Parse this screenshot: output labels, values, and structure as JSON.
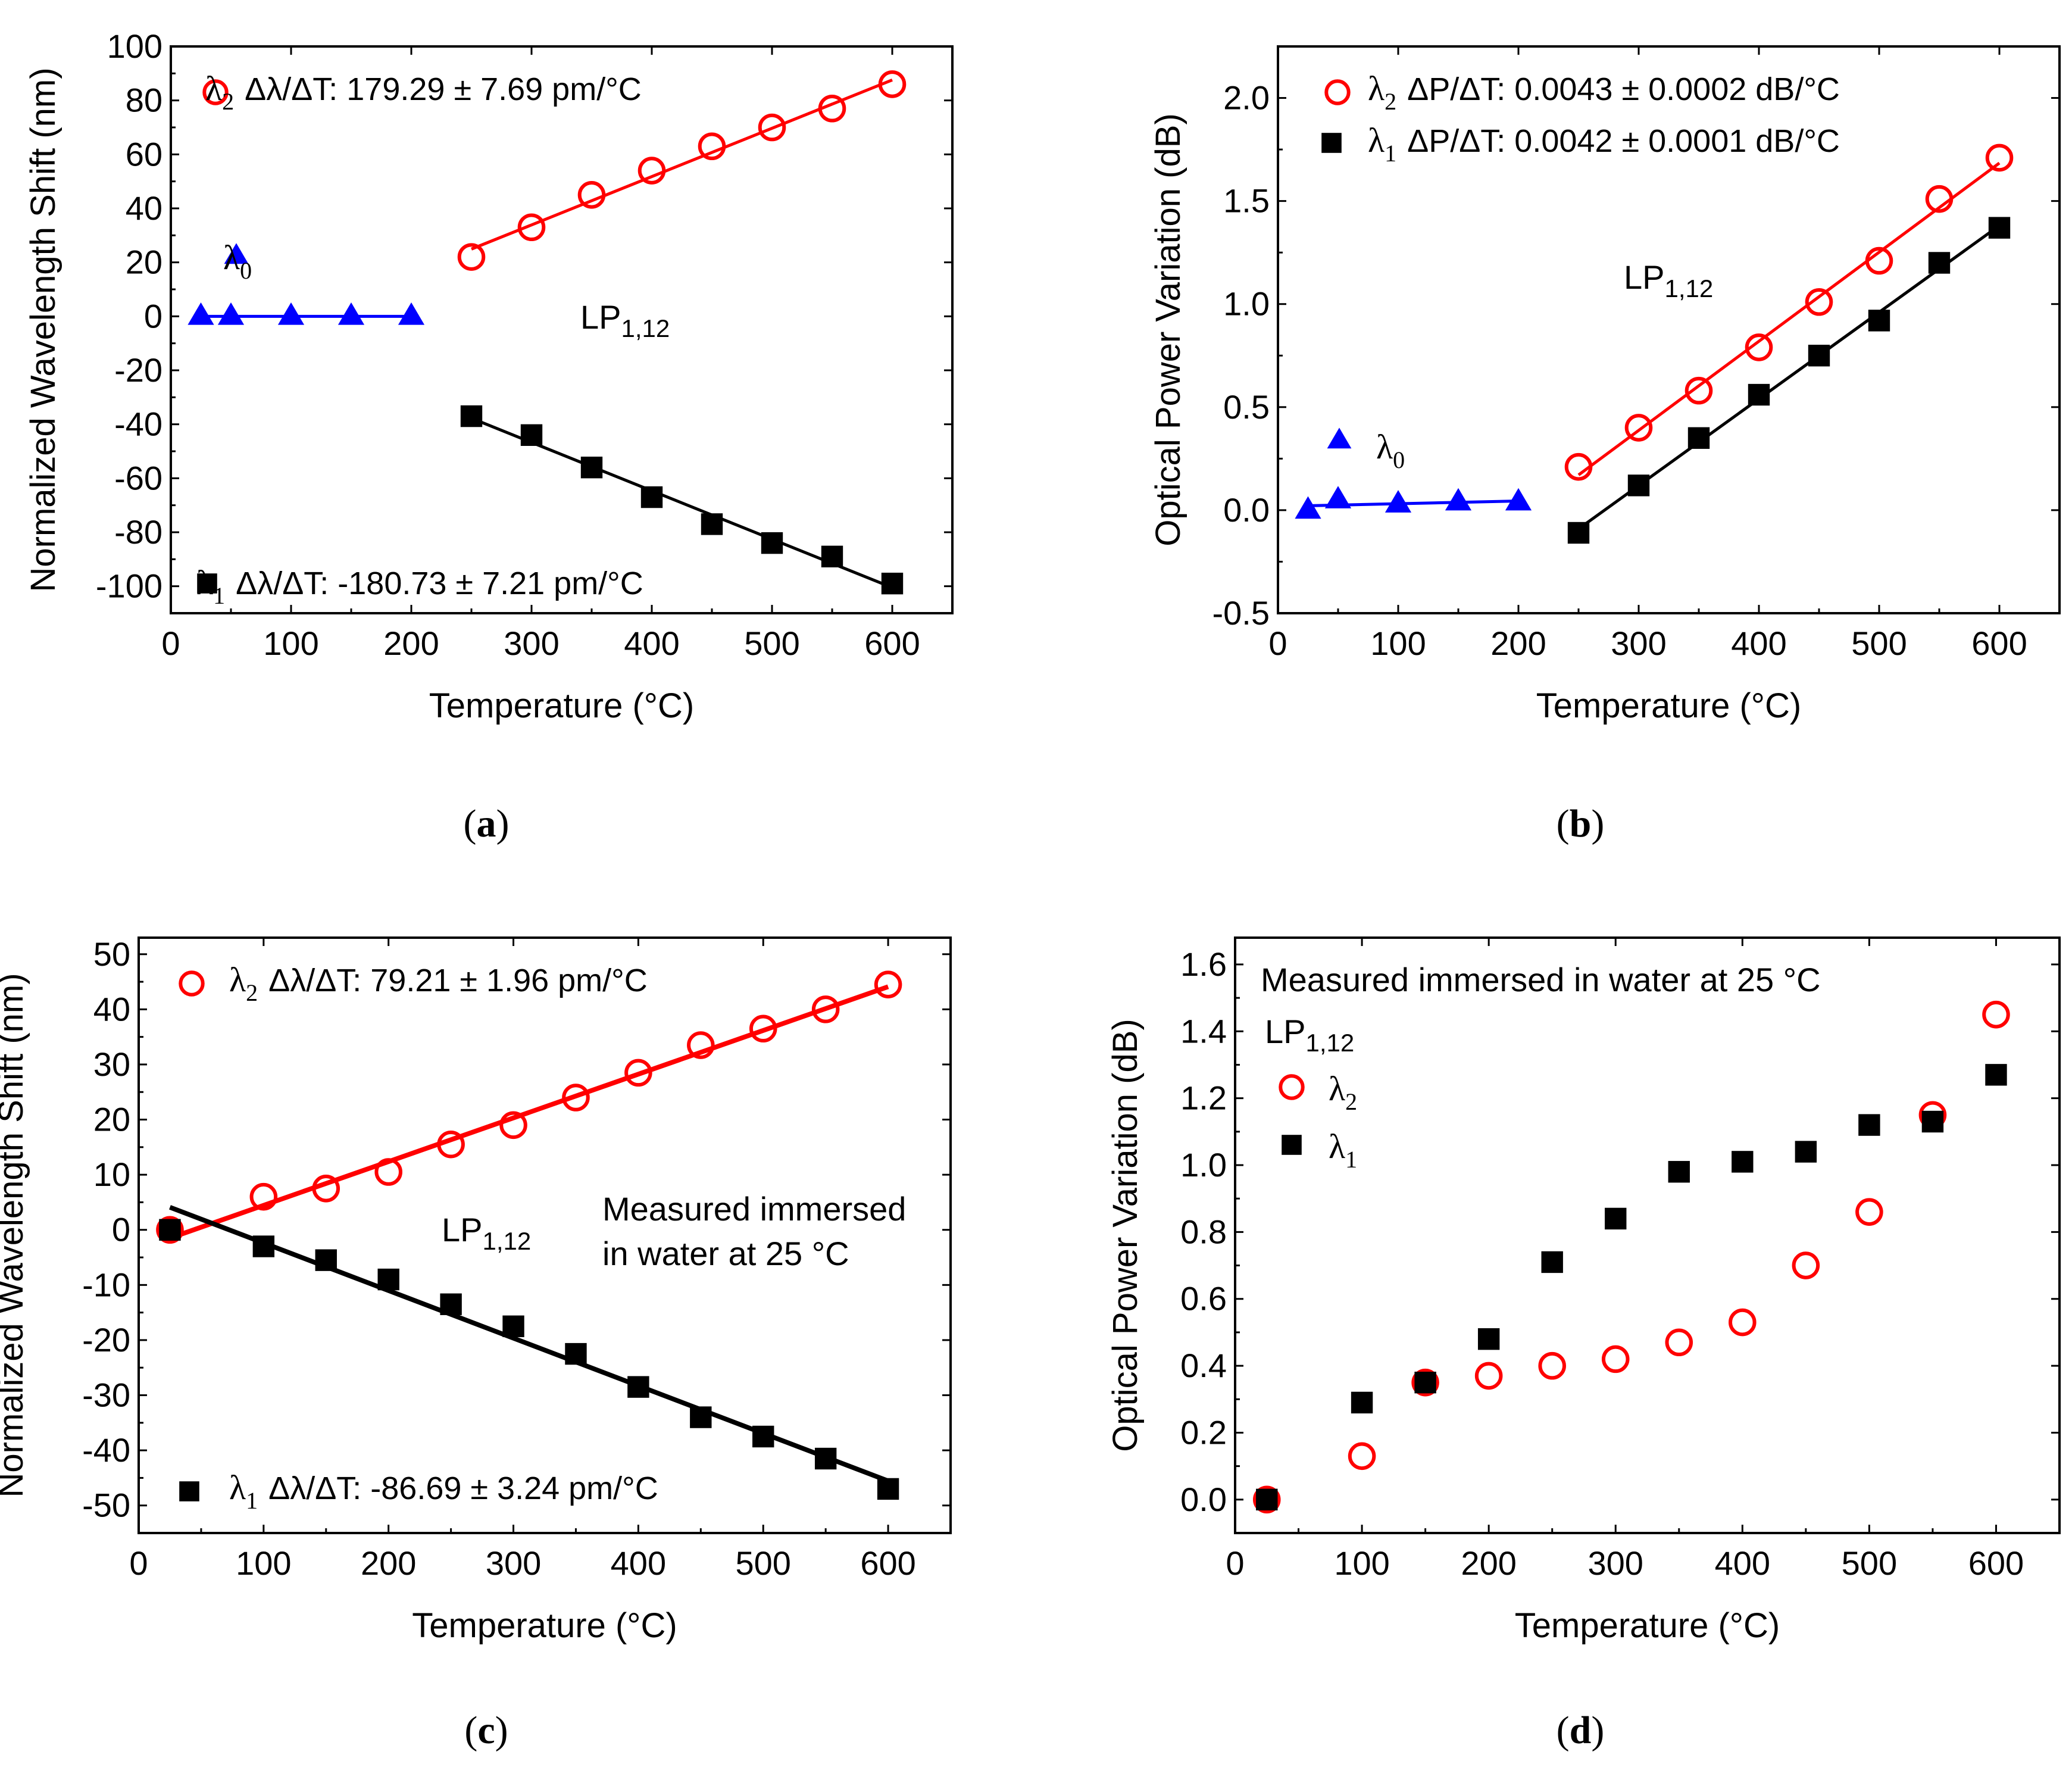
{
  "colors": {
    "lambda2": "#ff0000",
    "lambda1": "#000000",
    "lambda0": "#0000ff"
  },
  "chart_data": [
    {
      "panel": "(a)",
      "panel_letter": "a",
      "type": "scatter",
      "xlabel": "Temperature (°C)",
      "ylabel": "Normalized Wavelength Shift (nm)",
      "xlim": [
        0,
        650
      ],
      "ylim": [
        -110,
        100
      ],
      "xticks": [
        0,
        100,
        200,
        300,
        400,
        500,
        600
      ],
      "yticks": [
        -100,
        -80,
        -60,
        -40,
        -20,
        0,
        20,
        40,
        60,
        80,
        100
      ],
      "mode_label": {
        "main": "LP",
        "sub": "1,12"
      },
      "series": [
        {
          "name": "λ2",
          "marker": "open-circle",
          "color": "#ff0000",
          "fit": true,
          "annotation": {
            "symbol": "λ",
            "sub": "2",
            "text": "Δλ/ΔT: 179.29 ± 7.69 pm/°C"
          },
          "x": [
            250,
            300,
            350,
            400,
            450,
            500,
            550,
            600
          ],
          "y": [
            22,
            33,
            45,
            54,
            63,
            70,
            77,
            86
          ]
        },
        {
          "name": "λ1",
          "marker": "filled-square",
          "color": "#000000",
          "fit": true,
          "annotation": {
            "symbol": "λ",
            "sub": "1",
            "text": "Δλ/ΔT: -180.73 ± 7.21 pm/°C"
          },
          "x": [
            250,
            300,
            350,
            400,
            450,
            500,
            550,
            600
          ],
          "y": [
            -37,
            -44,
            -56,
            -67,
            -77,
            -84,
            -89,
            -99
          ]
        },
        {
          "name": "λ0",
          "marker": "filled-triangle",
          "color": "#0000ff",
          "fit": true,
          "annotation": {
            "symbol": "λ",
            "sub": "0",
            "text": ""
          },
          "x": [
            25,
            50,
            100,
            150,
            200
          ],
          "y": [
            0,
            0,
            0,
            0,
            0
          ]
        }
      ]
    },
    {
      "panel": "(b)",
      "panel_letter": "b",
      "type": "scatter",
      "xlabel": "Temperature (°C)",
      "ylabel": "Optical Power Variation (dB)",
      "xlim": [
        0,
        650
      ],
      "ylim": [
        -0.5,
        2.25
      ],
      "xticks": [
        0,
        100,
        200,
        300,
        400,
        500,
        600
      ],
      "yticks": [
        -0.5,
        0.0,
        0.5,
        1.0,
        1.5,
        2.0
      ],
      "ytick_labels": [
        "-0.5",
        "0.0",
        "0.5",
        "1.0",
        "1.5",
        "2.0"
      ],
      "mode_label": {
        "main": "LP",
        "sub": "1,12"
      },
      "series": [
        {
          "name": "λ2",
          "marker": "open-circle",
          "color": "#ff0000",
          "fit": true,
          "annotation": {
            "symbol": "λ",
            "sub": "2",
            "text": "ΔP/ΔT: 0.0043 ± 0.0002 dB/°C"
          },
          "x": [
            250,
            300,
            350,
            400,
            450,
            500,
            550,
            600
          ],
          "y": [
            0.21,
            0.4,
            0.58,
            0.79,
            1.01,
            1.21,
            1.51,
            1.71
          ]
        },
        {
          "name": "λ1",
          "marker": "filled-square",
          "color": "#000000",
          "fit": true,
          "annotation": {
            "symbol": "λ",
            "sub": "1",
            "text": "ΔP/ΔT: 0.0042 ± 0.0001 dB/°C"
          },
          "x": [
            250,
            300,
            350,
            400,
            450,
            500,
            550,
            600
          ],
          "y": [
            -0.11,
            0.12,
            0.35,
            0.56,
            0.75,
            0.92,
            1.2,
            1.37
          ]
        },
        {
          "name": "λ0",
          "marker": "filled-triangle",
          "color": "#0000ff",
          "fit": true,
          "annotation": {
            "symbol": "λ",
            "sub": "0",
            "text": ""
          },
          "x": [
            25,
            50,
            100,
            150,
            200
          ],
          "y": [
            0.0,
            0.05,
            0.03,
            0.04,
            0.04
          ]
        }
      ]
    },
    {
      "panel": "(c)",
      "panel_letter": "c",
      "type": "scatter",
      "xlabel": "Temperature (°C)",
      "ylabel": "Normalized Wavelength Shift (nm)",
      "xlim": [
        0,
        650
      ],
      "ylim": [
        -55,
        53
      ],
      "xticks": [
        0,
        100,
        200,
        300,
        400,
        500,
        600
      ],
      "yticks": [
        -50,
        -40,
        -30,
        -20,
        -10,
        0,
        10,
        20,
        30,
        40,
        50
      ],
      "mode_label": {
        "main": "LP",
        "sub": "1,12"
      },
      "note_lines": [
        "Measured immersed",
        "in water at 25 °C"
      ],
      "series": [
        {
          "name": "λ2",
          "marker": "open-circle",
          "color": "#ff0000",
          "fit": true,
          "annotation": {
            "symbol": "λ",
            "sub": "2",
            "text": "Δλ/ΔT: 79.21 ± 1.96 pm/°C"
          },
          "x": [
            25,
            100,
            150,
            200,
            250,
            300,
            350,
            400,
            450,
            500,
            550,
            600
          ],
          "y": [
            0,
            6,
            7.5,
            10.5,
            15.5,
            19,
            24,
            28.5,
            33.5,
            36.5,
            40,
            44.5
          ]
        },
        {
          "name": "λ1",
          "marker": "filled-square",
          "color": "#000000",
          "fit": true,
          "annotation": {
            "symbol": "λ",
            "sub": "1",
            "text": "Δλ/ΔT: -86.69 ± 3.24 pm/°C"
          },
          "x": [
            25,
            100,
            150,
            200,
            250,
            300,
            350,
            400,
            450,
            500,
            550,
            600
          ],
          "y": [
            0,
            -3,
            -5.5,
            -9,
            -13.5,
            -17.5,
            -22.5,
            -28.5,
            -34,
            -37.5,
            -41.5,
            -47
          ]
        }
      ]
    },
    {
      "panel": "(d)",
      "panel_letter": "d",
      "type": "scatter",
      "xlabel": "Temperature (°C)",
      "ylabel": "Optical Power Variation (dB)",
      "xlim": [
        0,
        650
      ],
      "ylim": [
        -0.1,
        1.68
      ],
      "xticks": [
        0,
        100,
        200,
        300,
        400,
        500,
        600
      ],
      "yticks": [
        0.0,
        0.2,
        0.4,
        0.6,
        0.8,
        1.0,
        1.2,
        1.4,
        1.6
      ],
      "ytick_labels": [
        "0.0",
        "0.2",
        "0.4",
        "0.6",
        "0.8",
        "1.0",
        "1.2",
        "1.4",
        "1.6"
      ],
      "mode_label": {
        "main": "LP",
        "sub": "1,12"
      },
      "note_lines": [
        "Measured immersed in water at 25 °C"
      ],
      "series": [
        {
          "name": "λ2",
          "marker": "open-circle",
          "color": "#ff0000",
          "fit": false,
          "annotation": {
            "symbol": "λ",
            "sub": "2",
            "text": ""
          },
          "x": [
            25,
            100,
            150,
            200,
            250,
            300,
            350,
            400,
            450,
            500,
            550,
            600
          ],
          "y": [
            0.0,
            0.13,
            0.35,
            0.37,
            0.4,
            0.42,
            0.47,
            0.53,
            0.7,
            0.86,
            1.15,
            1.45
          ]
        },
        {
          "name": "λ1",
          "marker": "filled-square",
          "color": "#000000",
          "fit": false,
          "annotation": {
            "symbol": "λ",
            "sub": "1",
            "text": ""
          },
          "x": [
            25,
            100,
            150,
            200,
            250,
            300,
            350,
            400,
            450,
            500,
            550,
            600
          ],
          "y": [
            0.0,
            0.29,
            0.35,
            0.48,
            0.71,
            0.84,
            0.98,
            1.01,
            1.04,
            1.12,
            1.13,
            1.27
          ]
        }
      ]
    }
  ]
}
